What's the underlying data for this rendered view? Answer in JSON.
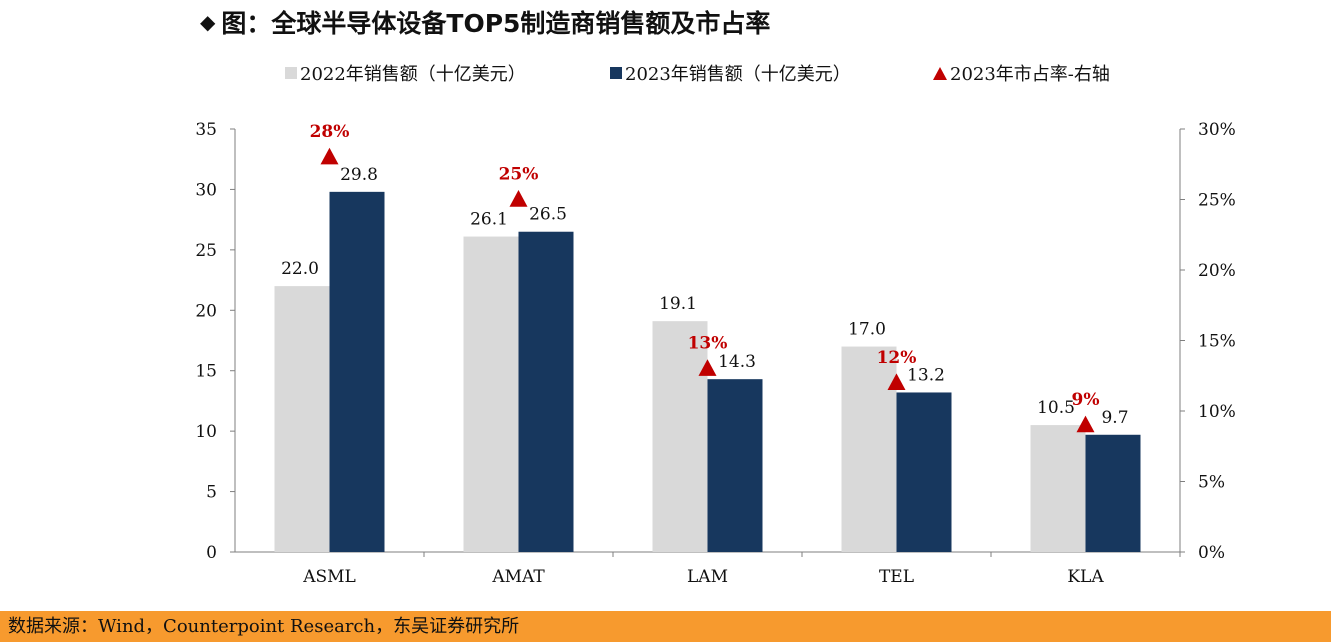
{
  "title": {
    "marker": "◆",
    "text": "图：全球半导体设备TOP5制造商销售额及市占率"
  },
  "legend": {
    "s2022": "2022年销售额（十亿美元）",
    "s2023": "2023年销售额（十亿美元）",
    "share": "2023年市占率-右轴"
  },
  "colors": {
    "s2022": "#d9d9d9",
    "s2023": "#17375e",
    "share": "#c00000",
    "footer": "#f79a2e"
  },
  "chart_data": {
    "type": "bar",
    "categories": [
      "ASML",
      "AMAT",
      "LAM",
      "TEL",
      "KLA"
    ],
    "series": [
      {
        "name": "2022年销售额（十亿美元）",
        "values": [
          22.0,
          26.1,
          19.1,
          17.0,
          10.5
        ],
        "labels": [
          "22.0",
          "26.1",
          "19.1",
          "17.0",
          "10.5"
        ]
      },
      {
        "name": "2023年销售额（十亿美元）",
        "values": [
          29.8,
          26.5,
          14.3,
          13.2,
          9.7
        ],
        "labels": [
          "29.8",
          "26.5",
          "14.3",
          "13.2",
          "9.7"
        ]
      }
    ],
    "share_series": {
      "name": "2023年市占率-右轴",
      "values": [
        28,
        25,
        13,
        12,
        9
      ],
      "labels": [
        "28%",
        "25%",
        "13%",
        "12%",
        "9%"
      ],
      "marker": "triangle",
      "axis": "right"
    },
    "y_left": {
      "ylim": [
        0,
        35
      ],
      "ticks": [
        "0",
        "5",
        "10",
        "15",
        "20",
        "25",
        "30",
        "35"
      ]
    },
    "y_right": {
      "ylim": [
        0,
        30
      ],
      "ticks": [
        "0%",
        "5%",
        "10%",
        "15%",
        "20%",
        "25%",
        "30%"
      ]
    },
    "grid": false,
    "legend_position": "top"
  },
  "footer": {
    "text": "数据来源：Wind，Counterpoint Research，东吴证券研究所"
  }
}
